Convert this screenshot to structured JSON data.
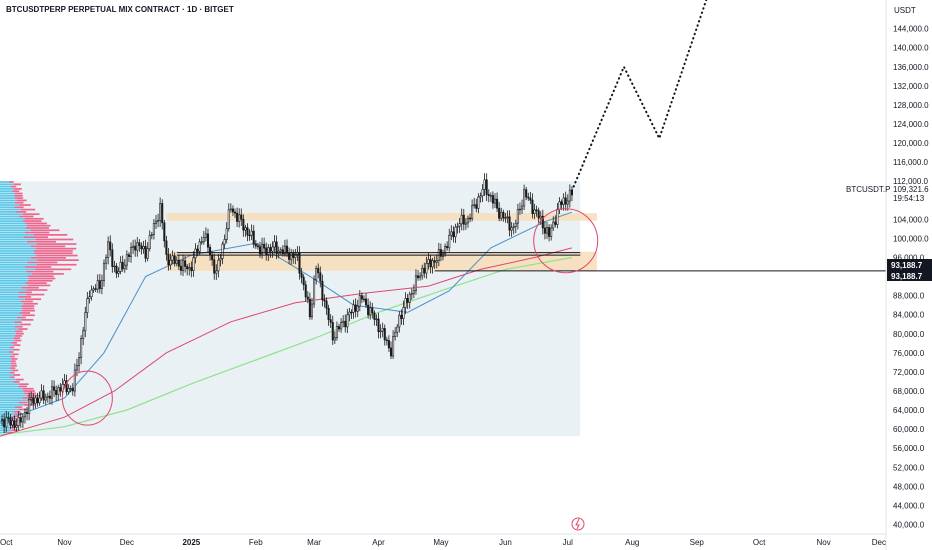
{
  "chart_data": {
    "type": "candlestick",
    "title": "BTCUSDTPERP PERPETUAL MIX CONTRACT · 1D · BITGET",
    "unit_label": "USDT",
    "symbol": "BTCUSDT.P",
    "last_price": "109,321.6",
    "countdown": "19:54:13",
    "level_tags": [
      "93,188.7",
      "93,188.7"
    ],
    "level_price": 93188.7,
    "ylim": [
      38000,
      150000
    ],
    "y_ticks": [
      {
        "value": 40000,
        "label": "40,000.0"
      },
      {
        "value": 44000,
        "label": "44,000.0"
      },
      {
        "value": 48000,
        "label": "48,000.0"
      },
      {
        "value": 52000,
        "label": "52,000.0"
      },
      {
        "value": 56000,
        "label": "56,000.0"
      },
      {
        "value": 60000,
        "label": "60,000.0"
      },
      {
        "value": 64000,
        "label": "64,000.0"
      },
      {
        "value": 68000,
        "label": "68,000.0"
      },
      {
        "value": 72000,
        "label": "72,000.0"
      },
      {
        "value": 76000,
        "label": "76,000.0"
      },
      {
        "value": 80000,
        "label": "80,000.0"
      },
      {
        "value": 84000,
        "label": "84,000.0"
      },
      {
        "value": 88000,
        "label": "88,000.0"
      },
      {
        "value": 96000,
        "label": "96,000.0"
      },
      {
        "value": 100000,
        "label": "100,000.0"
      },
      {
        "value": 104000,
        "label": "104,000.0"
      },
      {
        "value": 112000,
        "label": "112,000.0"
      },
      {
        "value": 116000,
        "label": "116,000.0"
      },
      {
        "value": 120000,
        "label": "120,000.0"
      },
      {
        "value": 124000,
        "label": "124,000.0"
      },
      {
        "value": 128000,
        "label": "128,000.0"
      },
      {
        "value": 132000,
        "label": "132,000.0"
      },
      {
        "value": 136000,
        "label": "136,000.0"
      },
      {
        "value": 140000,
        "label": "140,000.0"
      },
      {
        "value": 144000,
        "label": "144,000.0"
      }
    ],
    "x_ticks": [
      {
        "date": "2024-10-01",
        "label": "Oct",
        "bold": false
      },
      {
        "date": "2024-11-01",
        "label": "Nov",
        "bold": false
      },
      {
        "date": "2024-12-01",
        "label": "Dec",
        "bold": false
      },
      {
        "date": "2025-01-01",
        "label": "2025",
        "bold": true
      },
      {
        "date": "2025-02-01",
        "label": "Feb",
        "bold": false
      },
      {
        "date": "2025-03-01",
        "label": "Mar",
        "bold": false
      },
      {
        "date": "2025-04-01",
        "label": "Apr",
        "bold": false
      },
      {
        "date": "2025-05-01",
        "label": "May",
        "bold": false
      },
      {
        "date": "2025-06-01",
        "label": "Jun",
        "bold": false
      },
      {
        "date": "2025-07-01",
        "label": "Jul",
        "bold": false
      },
      {
        "date": "2025-08-01",
        "label": "Aug",
        "bold": false
      },
      {
        "date": "2025-09-01",
        "label": "Sep",
        "bold": false
      },
      {
        "date": "2025-10-01",
        "label": "Oct",
        "bold": false
      },
      {
        "date": "2025-11-01",
        "label": "Nov",
        "bold": false
      },
      {
        "date": "2025-12-01",
        "label": "Dec",
        "bold": false
      }
    ],
    "xlim": [
      "2024-10-01",
      "2025-12-01"
    ],
    "price_path": [
      [
        "2024-10-01",
        62000
      ],
      [
        "2024-10-10",
        61000
      ],
      [
        "2024-10-16",
        66000
      ],
      [
        "2024-10-24",
        67000
      ],
      [
        "2024-10-31",
        69000
      ],
      [
        "2024-11-05",
        68500
      ],
      [
        "2024-11-08",
        76000
      ],
      [
        "2024-11-13",
        89000
      ],
      [
        "2024-11-18",
        90000
      ],
      [
        "2024-11-22",
        98500
      ],
      [
        "2024-11-26",
        92500
      ],
      [
        "2024-12-02",
        96500
      ],
      [
        "2024-12-05",
        99000
      ],
      [
        "2024-12-10",
        97000
      ],
      [
        "2024-12-17",
        106500
      ],
      [
        "2024-12-20",
        96000
      ],
      [
        "2024-12-31",
        93500
      ],
      [
        "2025-01-07",
        101000
      ],
      [
        "2025-01-13",
        92500
      ],
      [
        "2025-01-20",
        106500
      ],
      [
        "2025-01-27",
        102000
      ],
      [
        "2025-02-03",
        97500
      ],
      [
        "2025-02-10",
        98000
      ],
      [
        "2025-02-21",
        96000
      ],
      [
        "2025-02-27",
        84000
      ],
      [
        "2025-03-02",
        94000
      ],
      [
        "2025-03-10",
        79500
      ],
      [
        "2025-03-24",
        87500
      ],
      [
        "2025-03-31",
        82500
      ],
      [
        "2025-04-07",
        76500
      ],
      [
        "2025-04-11",
        83500
      ],
      [
        "2025-04-22",
        93500
      ],
      [
        "2025-05-01",
        96500
      ],
      [
        "2025-05-09",
        103000
      ],
      [
        "2025-05-14",
        104000
      ],
      [
        "2025-05-22",
        111000
      ],
      [
        "2025-05-29",
        105500
      ],
      [
        "2025-06-05",
        102000
      ],
      [
        "2025-06-10",
        109500
      ],
      [
        "2025-06-17",
        104500
      ],
      [
        "2025-06-22",
        100500
      ],
      [
        "2025-06-27",
        107000
      ],
      [
        "2025-07-03",
        109300
      ]
    ],
    "sma_short": [
      [
        "2024-10-01",
        61500
      ],
      [
        "2024-11-01",
        66500
      ],
      [
        "2024-11-20",
        76000
      ],
      [
        "2024-12-10",
        92000
      ],
      [
        "2025-01-01",
        96500
      ],
      [
        "2025-02-01",
        99000
      ],
      [
        "2025-03-01",
        91500
      ],
      [
        "2025-03-20",
        86000
      ],
      [
        "2025-04-15",
        84500
      ],
      [
        "2025-05-05",
        89000
      ],
      [
        "2025-05-25",
        98000
      ],
      [
        "2025-06-20",
        103500
      ],
      [
        "2025-07-03",
        105500
      ]
    ],
    "sma_mid": [
      [
        "2024-10-01",
        58500
      ],
      [
        "2024-11-01",
        62500
      ],
      [
        "2024-11-25",
        68000
      ],
      [
        "2024-12-20",
        76000
      ],
      [
        "2025-01-20",
        82500
      ],
      [
        "2025-02-20",
        86500
      ],
      [
        "2025-03-25",
        88500
      ],
      [
        "2025-04-25",
        90000
      ],
      [
        "2025-05-20",
        93500
      ],
      [
        "2025-06-15",
        96000
      ],
      [
        "2025-07-03",
        98000
      ]
    ],
    "sma_long": [
      [
        "2024-10-01",
        58800
      ],
      [
        "2024-11-01",
        60500
      ],
      [
        "2024-12-01",
        64000
      ],
      [
        "2025-01-01",
        69500
      ],
      [
        "2025-02-01",
        74500
      ],
      [
        "2025-03-01",
        79000
      ],
      [
        "2025-04-01",
        84500
      ],
      [
        "2025-05-01",
        89000
      ],
      [
        "2025-06-01",
        93500
      ],
      [
        "2025-07-03",
        96000
      ]
    ],
    "projection": [
      [
        "2025-07-03",
        110000
      ],
      [
        "2025-07-28",
        136000
      ],
      [
        "2025-08-14",
        121000
      ],
      [
        "2025-09-06",
        150500
      ]
    ],
    "zones": [
      {
        "from": "2024-12-20",
        "to": "2025-07-15",
        "low": 103700,
        "high": 105300,
        "color": "#f7ddb8"
      },
      {
        "from": "2024-12-20",
        "to": "2025-07-15",
        "low": 93200,
        "high": 97200,
        "color": "#f7ddb8"
      }
    ],
    "range_box": {
      "from": "2024-10-01",
      "to": "2025-07-07",
      "low": 58500,
      "high": 112000,
      "color": "#e4eef2"
    },
    "poc_line": {
      "from": "2024-12-25",
      "to": "2025-07-07",
      "value": 96800
    },
    "circles": [
      {
        "date": "2024-11-12",
        "value": 66500,
        "rx": 25,
        "ry": 27
      },
      {
        "date": "2025-06-30",
        "value": 99500,
        "rx": 32,
        "ry": 32
      }
    ],
    "colors": {
      "up": "#1a1a1a",
      "down": "#ffffff",
      "sma_short": "#4a90c8",
      "sma_mid": "#e0476b",
      "sma_long": "#8fe28f",
      "profile_blue": "#42c1e6",
      "profile_pink": "#ee4b7a",
      "circle": "#e0476b",
      "tag_bg": "#131722"
    }
  }
}
